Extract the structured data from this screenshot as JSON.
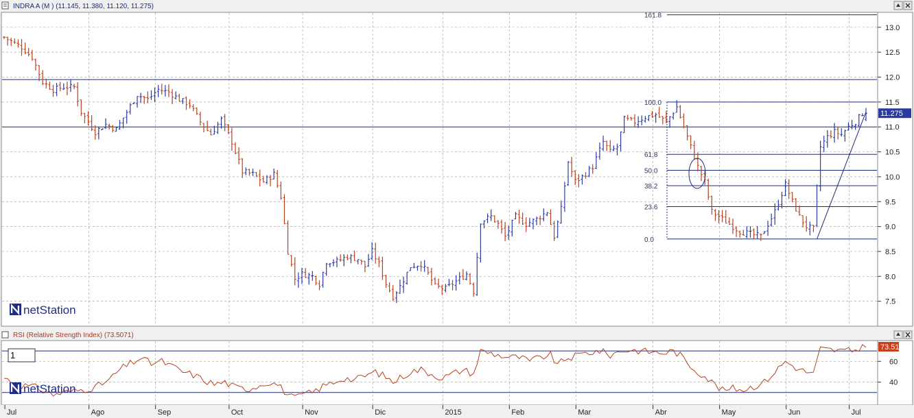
{
  "price_panel": {
    "title": "INDRA A (M ) (11.145, 11.380, 11.120, 11.275)",
    "last_price": "11.275",
    "logo_text": "netStation",
    "buttons": [
      "restore-icon",
      "close-icon"
    ]
  },
  "rsi_panel": {
    "title": "RSI (Relative Strength Index) (73.5071)",
    "last_value": "73.51",
    "box_label": "1",
    "logo_text": "netStation",
    "buttons": [
      "restore-icon",
      "close-icon"
    ]
  },
  "colors": {
    "up": "#2a3aa0",
    "down": "#b8401e",
    "line": "#1a2a7a",
    "rsi_line": "#b8401e",
    "last_price_bg": "#2a3aa0",
    "rsi_value_bg": "#c8401c",
    "grid": "#a8a8a8"
  },
  "chart_data": [
    {
      "type": "ohlc",
      "title": "INDRA A (M )",
      "x_labels": [
        "Jul",
        "Ago",
        "Sep",
        "Oct",
        "Nov",
        "Dic",
        "2015",
        "Feb",
        "Mar",
        "Abr",
        "May",
        "Jun",
        "Jul"
      ],
      "y_ticks": [
        7.5,
        8.0,
        8.5,
        9.0,
        9.5,
        10.0,
        10.5,
        11.0,
        11.5,
        12.0,
        12.5,
        13.0
      ],
      "ylim": [
        7.0,
        13.3
      ],
      "grid": true,
      "last": {
        "open": 11.145,
        "high": 11.38,
        "low": 11.12,
        "close": 11.275
      },
      "horizontal_lines": [
        11.95,
        11.0
      ],
      "fibonacci": {
        "levels": [
          "161.8",
          "100.0",
          "61.8",
          "50.0",
          "38.2",
          "23.6",
          "0.0"
        ],
        "prices": [
          13.25,
          11.5,
          10.45,
          10.13,
          9.82,
          9.4,
          8.75
        ]
      },
      "trendline": {
        "from": {
          "bar": 232,
          "price": 8.75
        },
        "to": {
          "bar": 246,
          "price": 11.3
        }
      },
      "anchors": [
        [
          0,
          12.8
        ],
        [
          5,
          12.6
        ],
        [
          8,
          12.4
        ],
        [
          11,
          11.9
        ],
        [
          14,
          11.75
        ],
        [
          17,
          11.8
        ],
        [
          20,
          11.8
        ],
        [
          22,
          11.3
        ],
        [
          26,
          10.9
        ],
        [
          29,
          11.05
        ],
        [
          32,
          10.95
        ],
        [
          35,
          11.3
        ],
        [
          38,
          11.65
        ],
        [
          41,
          11.55
        ],
        [
          44,
          11.75
        ],
        [
          47,
          11.7
        ],
        [
          50,
          11.55
        ],
        [
          53,
          11.45
        ],
        [
          56,
          11.1
        ],
        [
          59,
          10.85
        ],
        [
          62,
          11.15
        ],
        [
          65,
          10.7
        ],
        [
          68,
          10.1
        ],
        [
          71,
          10.05
        ],
        [
          74,
          9.9
        ],
        [
          77,
          10.05
        ],
        [
          79,
          9.6
        ],
        [
          81,
          8.5
        ],
        [
          83,
          7.95
        ],
        [
          85,
          8.05
        ],
        [
          88,
          8.0
        ],
        [
          90,
          7.85
        ],
        [
          92,
          8.3
        ],
        [
          95,
          8.3
        ],
        [
          98,
          8.4
        ],
        [
          101,
          8.35
        ],
        [
          103,
          8.2
        ],
        [
          105,
          8.5
        ],
        [
          107,
          8.25
        ],
        [
          109,
          7.85
        ],
        [
          111,
          7.6
        ],
        [
          113,
          7.8
        ],
        [
          116,
          8.2
        ],
        [
          119,
          8.25
        ],
        [
          121,
          8.05
        ],
        [
          123,
          7.8
        ],
        [
          126,
          7.75
        ],
        [
          129,
          7.9
        ],
        [
          132,
          8.05
        ],
        [
          134,
          7.7
        ],
        [
          136,
          9.1
        ],
        [
          139,
          9.2
        ],
        [
          141,
          9.05
        ],
        [
          143,
          8.8
        ],
        [
          146,
          9.2
        ],
        [
          149,
          9.05
        ],
        [
          152,
          9.15
        ],
        [
          155,
          9.3
        ],
        [
          157,
          8.8
        ],
        [
          159,
          9.35
        ],
        [
          161,
          10.3
        ],
        [
          163,
          9.9
        ],
        [
          165,
          10.0
        ],
        [
          168,
          10.2
        ],
        [
          171,
          10.7
        ],
        [
          173,
          10.5
        ],
        [
          175,
          10.6
        ],
        [
          177,
          11.15
        ],
        [
          180,
          11.1
        ],
        [
          183,
          11.2
        ],
        [
          186,
          11.25
        ],
        [
          189,
          11.1
        ],
        [
          192,
          11.4
        ],
        [
          194,
          11.0
        ],
        [
          196,
          10.6
        ],
        [
          198,
          10.2
        ],
        [
          200,
          9.9
        ],
        [
          202,
          9.3
        ],
        [
          204,
          9.2
        ],
        [
          206,
          9.1
        ],
        [
          208,
          9.0
        ],
        [
          210,
          8.9
        ],
        [
          213,
          8.85
        ],
        [
          216,
          8.8
        ],
        [
          218,
          9.05
        ],
        [
          220,
          9.3
        ],
        [
          223,
          9.85
        ],
        [
          225,
          9.5
        ],
        [
          227,
          9.2
        ],
        [
          229,
          9.0
        ],
        [
          231,
          8.95
        ],
        [
          233,
          10.6
        ],
        [
          235,
          10.8
        ],
        [
          237,
          10.9
        ],
        [
          239,
          10.85
        ],
        [
          241,
          11.0
        ],
        [
          243,
          11.1
        ],
        [
          245,
          11.275
        ]
      ]
    },
    {
      "type": "line",
      "title": "RSI (Relative Strength Index)",
      "y_ticks": [
        40,
        60
      ],
      "ylim": [
        18,
        80
      ],
      "reference_lines": [
        70,
        30
      ],
      "last_value": 73.51,
      "anchors": [
        [
          0,
          44
        ],
        [
          5,
          37
        ],
        [
          9,
          35
        ],
        [
          11,
          32
        ],
        [
          14,
          28
        ],
        [
          17,
          30
        ],
        [
          21,
          32
        ],
        [
          26,
          35
        ],
        [
          30,
          42
        ],
        [
          33,
          52
        ],
        [
          36,
          58
        ],
        [
          39,
          63
        ],
        [
          42,
          58
        ],
        [
          45,
          60
        ],
        [
          48,
          55
        ],
        [
          51,
          50
        ],
        [
          54,
          47
        ],
        [
          57,
          42
        ],
        [
          60,
          38
        ],
        [
          63,
          40
        ],
        [
          66,
          35
        ],
        [
          69,
          33
        ],
        [
          72,
          36
        ],
        [
          75,
          40
        ],
        [
          78,
          38
        ],
        [
          81,
          28
        ],
        [
          83,
          24
        ],
        [
          85,
          28
        ],
        [
          88,
          30
        ],
        [
          91,
          36
        ],
        [
          94,
          40
        ],
        [
          97,
          44
        ],
        [
          100,
          42
        ],
        [
          103,
          46
        ],
        [
          106,
          50
        ],
        [
          109,
          45
        ],
        [
          111,
          40
        ],
        [
          113,
          44
        ],
        [
          116,
          50
        ],
        [
          119,
          52
        ],
        [
          122,
          48
        ],
        [
          125,
          44
        ],
        [
          128,
          48
        ],
        [
          131,
          52
        ],
        [
          134,
          48
        ],
        [
          136,
          70
        ],
        [
          139,
          68
        ],
        [
          141,
          66
        ],
        [
          144,
          64
        ],
        [
          147,
          64
        ],
        [
          150,
          60
        ],
        [
          153,
          64
        ],
        [
          156,
          66
        ],
        [
          158,
          56
        ],
        [
          160,
          62
        ],
        [
          163,
          65
        ],
        [
          166,
          68
        ],
        [
          170,
          70
        ],
        [
          173,
          66
        ],
        [
          176,
          70
        ],
        [
          179,
          71
        ],
        [
          182,
          70
        ],
        [
          185,
          69
        ],
        [
          188,
          68
        ],
        [
          191,
          70
        ],
        [
          193,
          66
        ],
        [
          195,
          58
        ],
        [
          198,
          50
        ],
        [
          200,
          46
        ],
        [
          202,
          40
        ],
        [
          205,
          32
        ],
        [
          208,
          34
        ],
        [
          211,
          33
        ],
        [
          214,
          36
        ],
        [
          217,
          40
        ],
        [
          220,
          50
        ],
        [
          223,
          60
        ],
        [
          225,
          56
        ],
        [
          227,
          52
        ],
        [
          229,
          50
        ],
        [
          231,
          48
        ],
        [
          233,
          72
        ],
        [
          236,
          71
        ],
        [
          239,
          70
        ],
        [
          242,
          70
        ],
        [
          245,
          73.5
        ]
      ]
    }
  ]
}
